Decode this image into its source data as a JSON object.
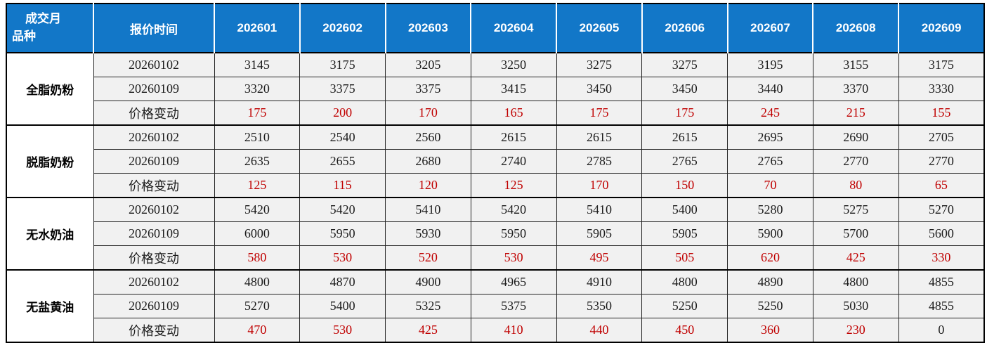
{
  "chart_data": {
    "type": "table",
    "corner_header": {
      "line1": "成交月",
      "line2": "品种"
    },
    "quote_time_header": "报价时间",
    "month_columns": [
      "202601",
      "202602",
      "202603",
      "202604",
      "202605",
      "202606",
      "202607",
      "202608",
      "202609"
    ],
    "groups": [
      {
        "product": "全脂奶粉",
        "rows": [
          {
            "label": "20260102",
            "type": "quote",
            "values": [
              3145,
              3175,
              3205,
              3250,
              3275,
              3275,
              3195,
              3155,
              3175
            ]
          },
          {
            "label": "20260109",
            "type": "quote",
            "values": [
              3320,
              3375,
              3375,
              3415,
              3450,
              3450,
              3440,
              3370,
              3330
            ]
          },
          {
            "label": "价格变动",
            "type": "change",
            "values": [
              175,
              200,
              170,
              165,
              175,
              175,
              245,
              215,
              155
            ]
          }
        ]
      },
      {
        "product": "脱脂奶粉",
        "rows": [
          {
            "label": "20260102",
            "type": "quote",
            "values": [
              2510,
              2540,
              2560,
              2615,
              2615,
              2615,
              2695,
              2690,
              2705
            ]
          },
          {
            "label": "20260109",
            "type": "quote",
            "values": [
              2635,
              2655,
              2680,
              2740,
              2785,
              2765,
              2765,
              2770,
              2770
            ]
          },
          {
            "label": "价格变动",
            "type": "change",
            "values": [
              125,
              115,
              120,
              125,
              170,
              150,
              70,
              80,
              65
            ]
          }
        ]
      },
      {
        "product": "无水奶油",
        "rows": [
          {
            "label": "20260102",
            "type": "quote",
            "values": [
              5420,
              5420,
              5410,
              5420,
              5410,
              5400,
              5280,
              5275,
              5270
            ]
          },
          {
            "label": "20260109",
            "type": "quote",
            "values": [
              6000,
              5950,
              5930,
              5950,
              5905,
              5905,
              5900,
              5700,
              5600
            ]
          },
          {
            "label": "价格变动",
            "type": "change",
            "values": [
              580,
              530,
              520,
              530,
              495,
              505,
              620,
              425,
              330
            ]
          }
        ]
      },
      {
        "product": "无盐黄油",
        "rows": [
          {
            "label": "20260102",
            "type": "quote",
            "values": [
              4800,
              4870,
              4900,
              4965,
              4910,
              4800,
              4890,
              4800,
              4855
            ]
          },
          {
            "label": "20260109",
            "type": "quote",
            "values": [
              5270,
              5400,
              5325,
              5375,
              5350,
              5250,
              5250,
              5030,
              4855
            ]
          },
          {
            "label": "价格变动",
            "type": "change",
            "values": [
              470,
              530,
              425,
              410,
              440,
              450,
              360,
              230,
              0
            ]
          }
        ]
      }
    ]
  },
  "colors": {
    "header_bg": "#1277C8",
    "header_text": "#FFFFFF",
    "change_value_text": "#C00000",
    "body_cell_bg": "#F1F1F1",
    "grid_line": "#262626"
  }
}
